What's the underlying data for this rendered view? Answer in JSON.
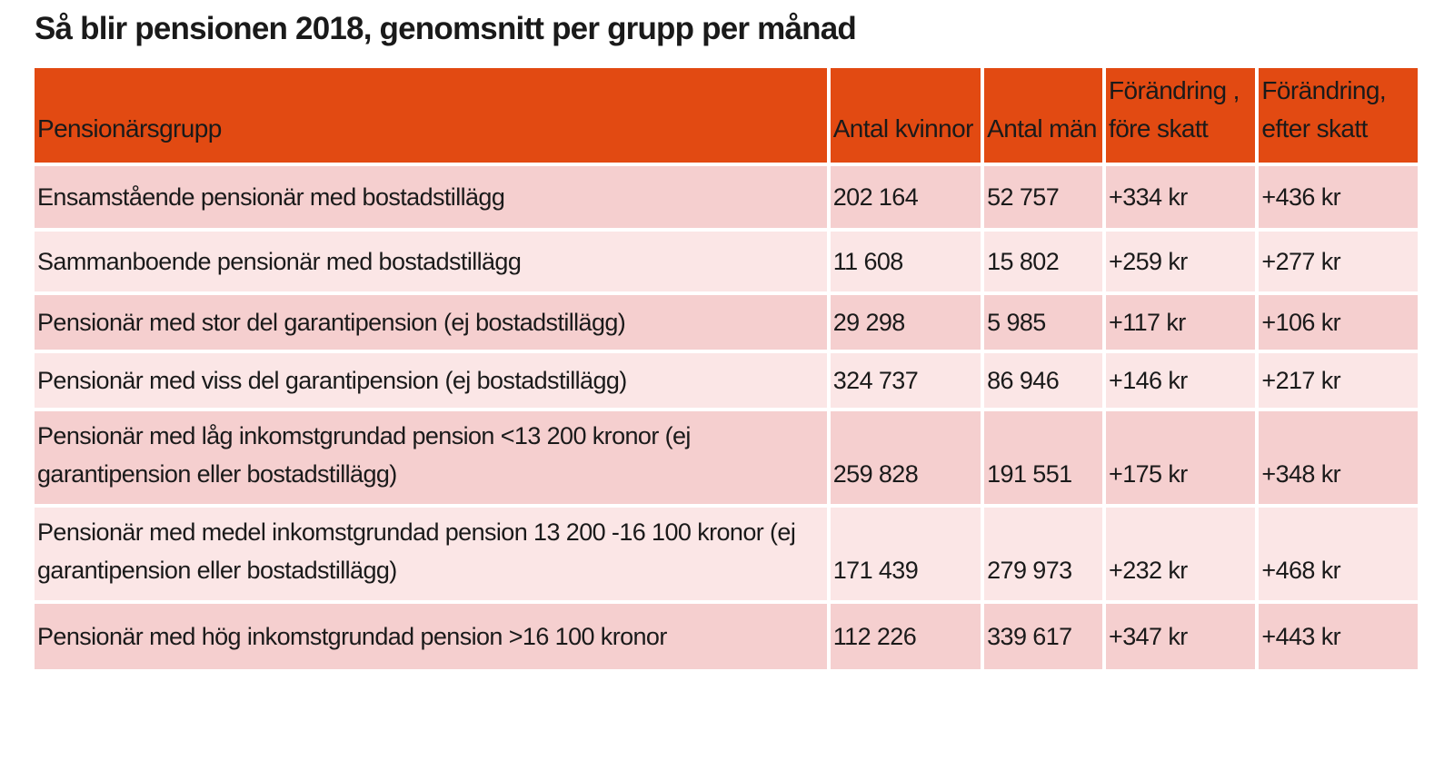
{
  "title": "Så blir pensionen 2018, genomsnitt per grupp per månad",
  "chart_data": {
    "type": "table",
    "title": "Så blir pensionen 2018, genomsnitt per grupp per månad",
    "columns": [
      "Pensionärsgrupp",
      "Antal kvinnor",
      "Antal män",
      "Förändring , före skatt",
      "Förändring, efter skatt"
    ],
    "rows": [
      [
        "Ensamstående pensionär med bostadstillägg",
        "202 164",
        "52 757",
        "+334 kr",
        "+436 kr"
      ],
      [
        "Sammanboende pensionär med bostadstillägg",
        "11 608",
        "15 802",
        "+259 kr",
        "+277 kr"
      ],
      [
        "Pensionär med stor del garantipension (ej bostadstillägg)",
        "29 298",
        "5 985",
        "+117 kr",
        "+106 kr"
      ],
      [
        "Pensionär med viss del garantipension (ej bostadstillägg)",
        "324 737",
        "86 946",
        "+146 kr",
        "+217 kr"
      ],
      [
        "Pensionär med låg inkomstgrundad pension <13 200 kronor (ej garantipension eller bostadstillägg)",
        "259 828",
        "191 551",
        "+175 kr",
        "+348 kr"
      ],
      [
        "Pensionär med medel inkomstgrundad pension 13 200 -16 100 kronor (ej garantipension eller bostadstillägg)",
        "171 439",
        "279 973",
        "+232 kr",
        "+468 kr"
      ],
      [
        "Pensionär med hög inkomstgrundad pension >16 100 kronor",
        "112 226",
        "339 617",
        "+347 kr",
        "+443 kr"
      ]
    ]
  },
  "colors": {
    "header_bg": "#e24a12",
    "row_dark": "#f5cfcf",
    "row_light": "#fbe6e6"
  }
}
